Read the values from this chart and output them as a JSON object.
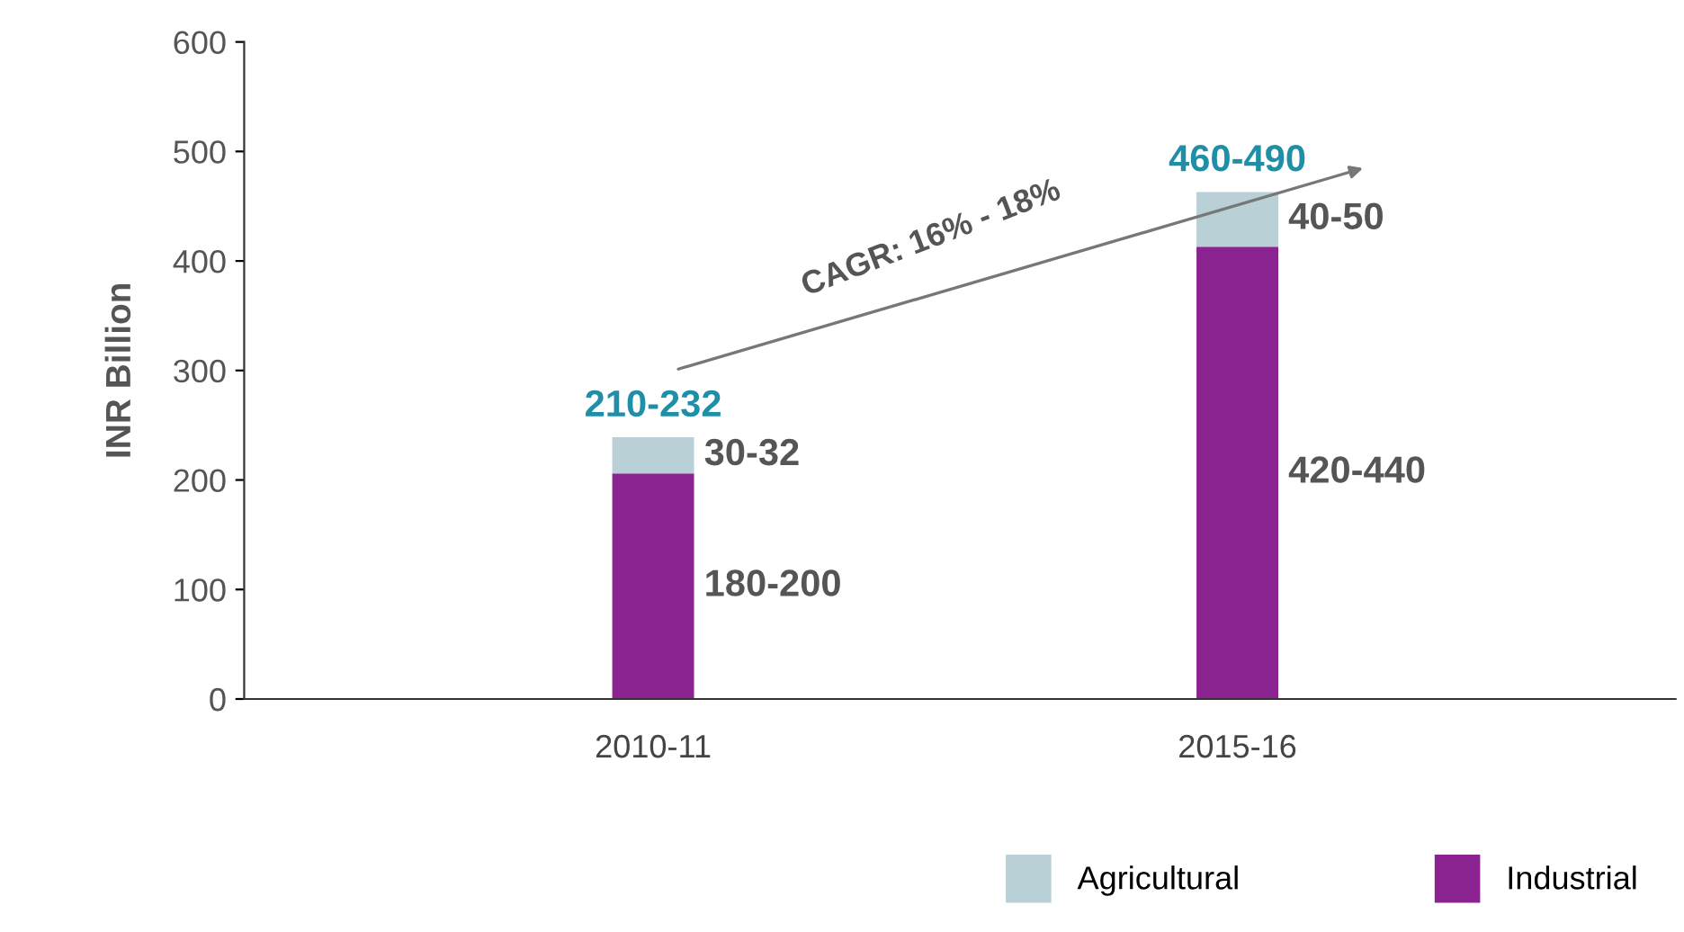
{
  "chart_data": {
    "type": "bar",
    "stacked": true,
    "ylabel": "INR Billion",
    "categories": [
      "2010-11",
      "2015-16"
    ],
    "series": [
      {
        "name": "Industrial",
        "color": "#8b2391",
        "values": [
          206,
          413
        ]
      },
      {
        "name": "Agricultural",
        "color": "#b9d0d6",
        "values": [
          33,
          50
        ]
      }
    ],
    "totals": [
      "210-232",
      "460-490"
    ],
    "annotations": [
      "CAGR: 16% - 18%",
      "30-32",
      "180-200",
      "40-50",
      "420-440"
    ],
    "ylim": [
      0,
      600
    ],
    "yticks": [
      0,
      100,
      200,
      300,
      400,
      500,
      600
    ],
    "grid": false,
    "legend": "bottom right"
  }
}
